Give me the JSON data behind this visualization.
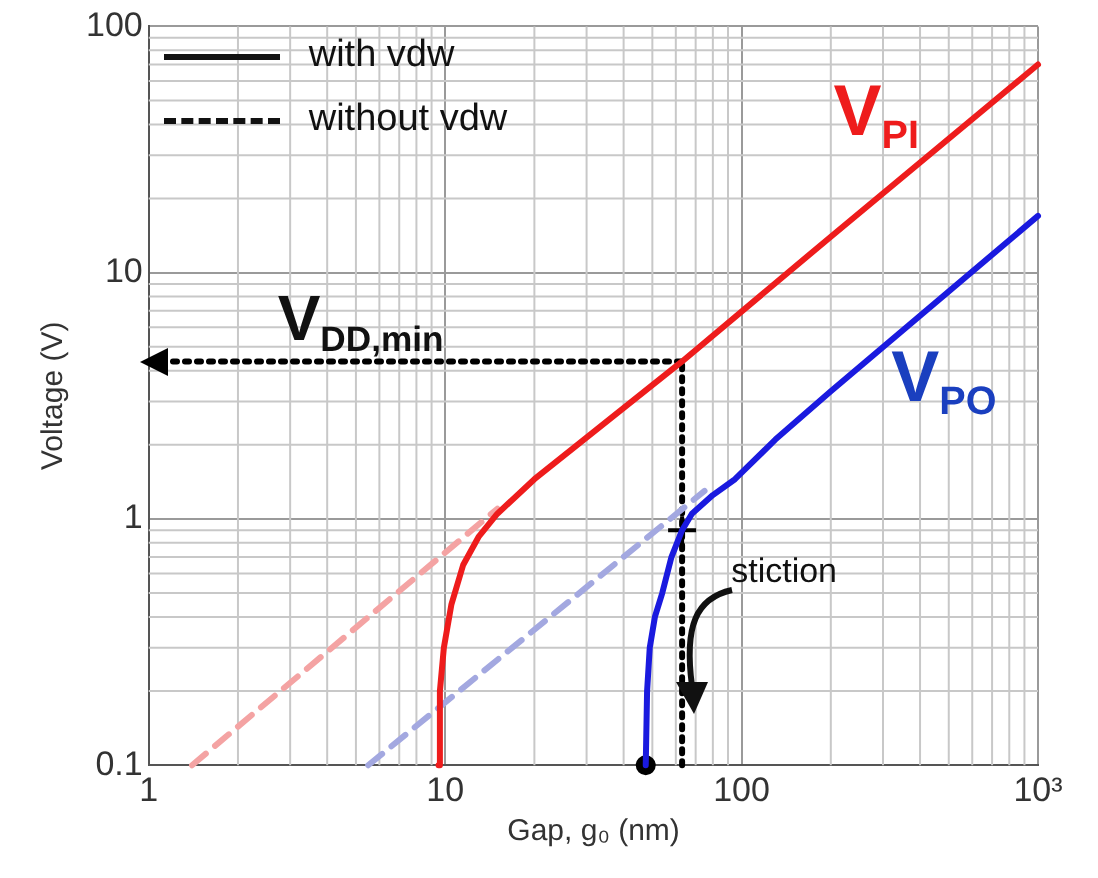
{
  "chart_data": {
    "type": "line",
    "xlabel": "Gap, g₀ (nm)",
    "ylabel": "Voltage (V)",
    "log": "xy",
    "xlim": [
      1,
      1000
    ],
    "ylim": [
      0.1,
      100
    ],
    "xticks": [
      1,
      10,
      100,
      {
        "value": 1000,
        "label": "10³"
      }
    ],
    "yticks": [
      0.1,
      1,
      10,
      100
    ],
    "grid": true,
    "series": [
      {
        "color": "#ee1c1c",
        "line_style": "solid",
        "x": [
          9.5,
          9.6,
          9.9,
          10.5,
          11.5,
          13,
          15,
          20,
          63,
          200,
          1000
        ],
        "values": [
          0.1,
          0.2,
          0.3,
          0.45,
          0.65,
          0.85,
          1.05,
          1.45,
          4.36,
          14,
          70
        ]
      },
      {
        "color": "#f4a3a3",
        "line_style": "dashed",
        "x": [
          1.4,
          15
        ],
        "values": [
          0.1,
          1.1
        ]
      },
      {
        "color": "#1a1adf",
        "line_style": "solid",
        "x": [
          47.5,
          48,
          49,
          51,
          54,
          58,
          63,
          68,
          80,
          95,
          130,
          200,
          1000
        ],
        "values": [
          0.1,
          0.2,
          0.3,
          0.4,
          0.5,
          0.7,
          0.9,
          1.05,
          1.25,
          1.45,
          2.1,
          3.3,
          17
        ]
      },
      {
        "color": "#a3a8e0",
        "line_style": "dashed",
        "x": [
          5.5,
          75
        ],
        "values": [
          0.1,
          1.3
        ]
      },
      {
        "color": "#000000",
        "line_style": "dotted",
        "x": [
          1.1,
          63
        ],
        "values": [
          4.36,
          4.36
        ]
      },
      {
        "color": "#000000",
        "line_style": "dotted",
        "x": [
          63,
          63
        ],
        "values": [
          0.1,
          4.36
        ]
      },
      {
        "type": "scatter",
        "color": "#000000",
        "marker": "circle",
        "x": [
          47.5
        ],
        "values": [
          0.1
        ]
      },
      {
        "type": "scatter",
        "color": "#000000",
        "marker": "cross",
        "x": [
          63
        ],
        "values": [
          0.9
        ]
      }
    ],
    "annotations": [
      "with vdw",
      "without vdw",
      "V$_{PI}$",
      "V$_{PO}$",
      "V$_{DD,min}$",
      "stiction"
    ]
  }
}
